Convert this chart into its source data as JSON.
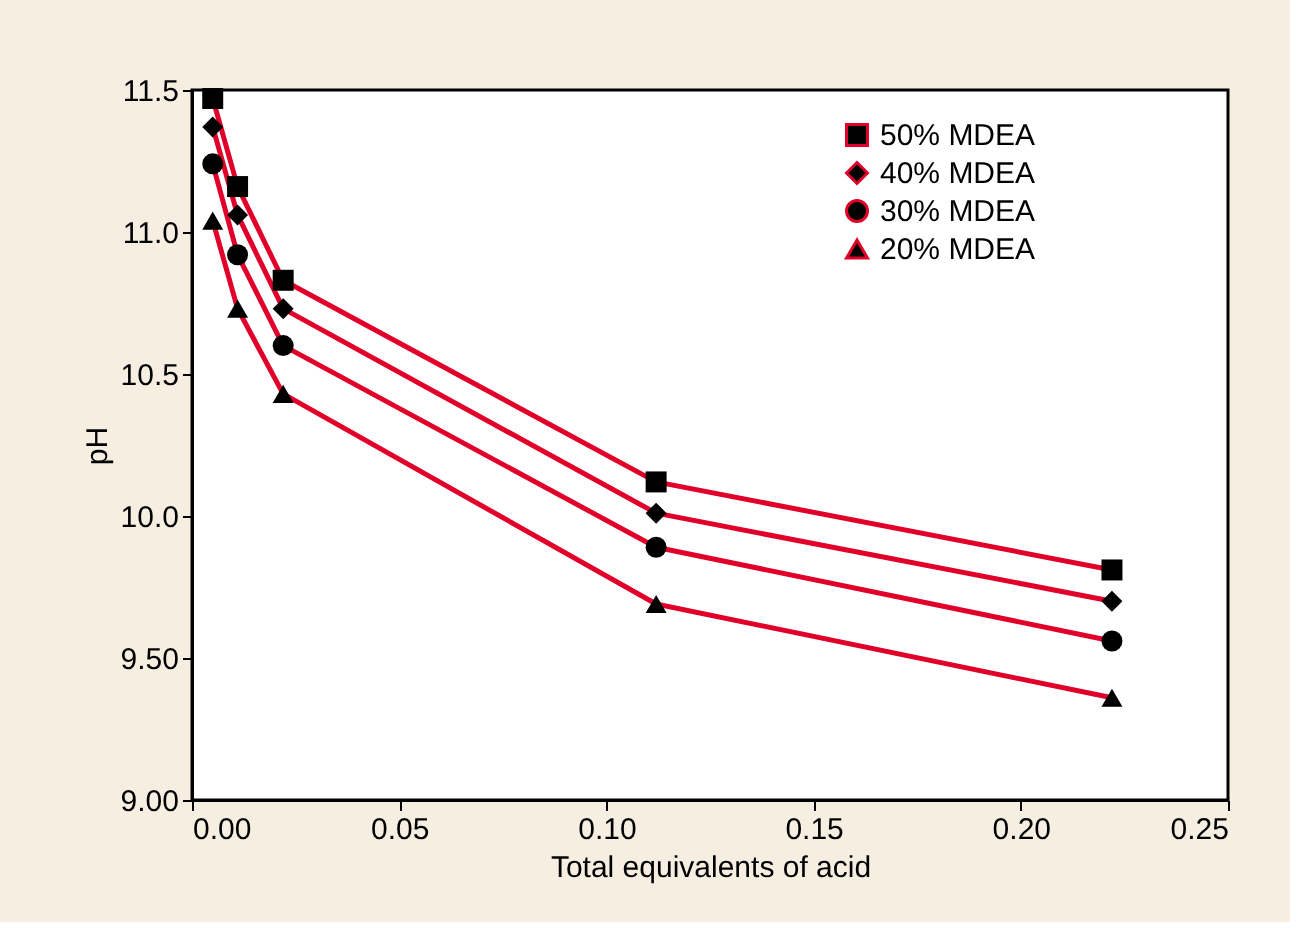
{
  "chart_data": {
    "type": "line",
    "xlabel": "Total equivalents of acid",
    "ylabel": "pH",
    "x": [
      0.005,
      0.011,
      0.022,
      0.112,
      0.222
    ],
    "series": [
      {
        "name": "50% MDEA",
        "color": "#e0002a",
        "marker": "square",
        "values": [
          11.47,
          11.16,
          10.83,
          10.12,
          9.81
        ]
      },
      {
        "name": "40% MDEA",
        "color": "#e0002a",
        "marker": "diamond",
        "values": [
          11.37,
          11.06,
          10.73,
          10.01,
          9.7
        ]
      },
      {
        "name": "30% MDEA",
        "color": "#e0002a",
        "marker": "circle",
        "values": [
          11.24,
          10.92,
          10.6,
          9.89,
          9.56
        ]
      },
      {
        "name": "20% MDEA",
        "color": "#e0002a",
        "marker": "triangle",
        "values": [
          11.04,
          10.73,
          10.43,
          9.69,
          9.36
        ]
      }
    ],
    "xlim": [
      0,
      0.25
    ],
    "xticks": [
      {
        "value": 0,
        "label": "0.00"
      },
      0.05,
      {
        "value": 0.1,
        "label": "0.10"
      },
      0.15,
      {
        "value": 0.2,
        "label": "0.20"
      },
      0.25
    ],
    "ylim": [
      9,
      11.5
    ],
    "yticks": [
      {
        "value": 9,
        "label": "9.00"
      },
      {
        "value": 9.5,
        "label": "9.50"
      },
      {
        "value": 10,
        "label": "10.0"
      },
      10.5,
      {
        "value": 11,
        "label": "11.0"
      },
      11.5
    ],
    "grid": false,
    "legend": "top right",
    "line_style": "solid"
  }
}
